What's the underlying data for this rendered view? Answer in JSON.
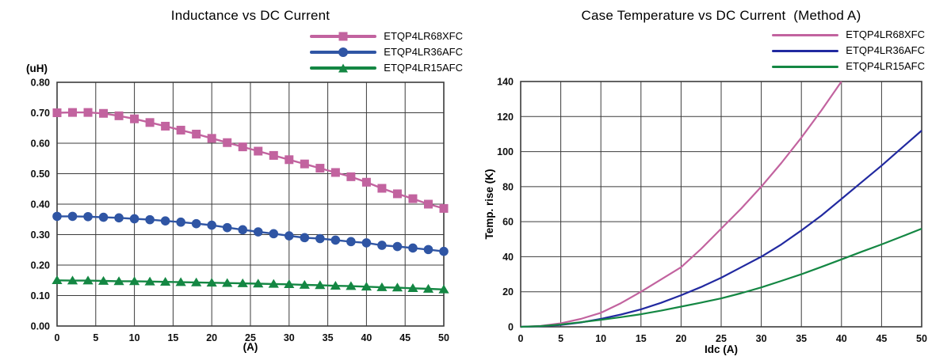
{
  "page": {
    "background": "#ffffff"
  },
  "chart_data": [
    {
      "id": "inductance",
      "type": "line",
      "title": "Inductance vs DC Current",
      "xlabel": "(A)",
      "ylabel": "(uH)",
      "xlim": [
        0,
        50
      ],
      "ylim": [
        0,
        0.8
      ],
      "xticks": [
        0,
        5,
        10,
        15,
        20,
        25,
        30,
        35,
        40,
        45,
        50
      ],
      "ytick_labels": [
        "0.00",
        "0.10",
        "0.20",
        "0.30",
        "0.40",
        "0.50",
        "0.60",
        "0.70",
        "0.80"
      ],
      "grid": true,
      "legend_position": "top-right",
      "grid_color": "#3b3b3b",
      "x": [
        0,
        2,
        4,
        6,
        8,
        10,
        12,
        14,
        16,
        18,
        20,
        22,
        24,
        26,
        28,
        30,
        32,
        34,
        36,
        38,
        40,
        42,
        44,
        46,
        48,
        50
      ],
      "series": [
        {
          "name": "ETQP4LR68XFC",
          "color": "#c2639f",
          "marker": "square",
          "values": [
            0.7,
            0.701,
            0.701,
            0.698,
            0.69,
            0.68,
            0.668,
            0.656,
            0.643,
            0.63,
            0.616,
            0.602,
            0.588,
            0.574,
            0.56,
            0.546,
            0.532,
            0.518,
            0.504,
            0.49,
            0.472,
            0.452,
            0.434,
            0.418,
            0.4,
            0.386
          ]
        },
        {
          "name": "ETQP4LR36AFC",
          "color": "#2f55a4",
          "marker": "circle",
          "values": [
            0.36,
            0.36,
            0.359,
            0.357,
            0.355,
            0.352,
            0.349,
            0.345,
            0.341,
            0.336,
            0.331,
            0.323,
            0.316,
            0.309,
            0.303,
            0.296,
            0.29,
            0.287,
            0.282,
            0.277,
            0.273,
            0.265,
            0.261,
            0.256,
            0.251,
            0.245
          ]
        },
        {
          "name": "ETQP4LR15AFC",
          "color": "#148743",
          "marker": "triangle",
          "values": [
            0.15,
            0.149,
            0.149,
            0.148,
            0.147,
            0.147,
            0.146,
            0.145,
            0.144,
            0.143,
            0.142,
            0.141,
            0.14,
            0.139,
            0.138,
            0.137,
            0.135,
            0.134,
            0.132,
            0.131,
            0.129,
            0.127,
            0.126,
            0.124,
            0.122,
            0.12
          ]
        }
      ]
    },
    {
      "id": "temperature",
      "type": "line",
      "title": "Case Temperature vs DC Current  (Method A)",
      "xlabel": "Idc (A)",
      "ylabel": "Temp. rise (K)",
      "xlim": [
        0,
        50
      ],
      "ylim": [
        0,
        140
      ],
      "xticks": [
        0,
        5,
        10,
        15,
        20,
        25,
        30,
        35,
        40,
        45,
        50
      ],
      "ytick_labels": [
        "0",
        "20",
        "40",
        "60",
        "80",
        "100",
        "120",
        "140"
      ],
      "grid": true,
      "legend_position": "top-right",
      "grid_color": "#3b3b3b",
      "x": [
        0,
        2.5,
        5,
        7.5,
        10,
        12.5,
        15,
        17.5,
        20,
        22.5,
        25,
        27.5,
        30,
        32.5,
        35,
        37.5,
        40,
        42.5,
        45,
        47.5,
        50
      ],
      "series": [
        {
          "name": "ETQP4LR68XFC",
          "color": "#c2639f",
          "marker": "none",
          "values": [
            0,
            0.5,
            2,
            4.5,
            8,
            13.5,
            20,
            27,
            34,
            44.5,
            56,
            67.5,
            80,
            93.5,
            108,
            123.5,
            140,
            null,
            null,
            null,
            null
          ]
        },
        {
          "name": "ETQP4LR36AFC",
          "color": "#2129a0",
          "marker": "none",
          "values": [
            0,
            0.3,
            1.1,
            2.5,
            4.5,
            7,
            10,
            13.7,
            18,
            22.7,
            28,
            34,
            40,
            47,
            55,
            63.5,
            73,
            82.5,
            92,
            102,
            112
          ]
        },
        {
          "name": "ETQP4LR15AFC",
          "color": "#148743",
          "marker": "none",
          "values": [
            0,
            0.4,
            1.3,
            2.6,
            4,
            5.5,
            7.2,
            9.2,
            11.5,
            13.8,
            16.2,
            19.2,
            22.5,
            26.2,
            30,
            34.2,
            38.5,
            42.8,
            47,
            51.5,
            56
          ]
        }
      ]
    }
  ]
}
